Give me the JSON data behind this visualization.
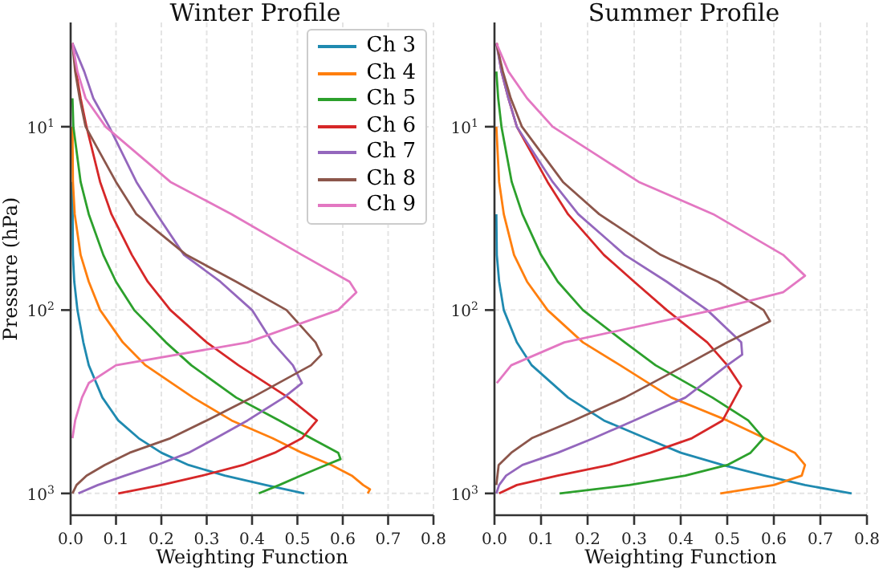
{
  "chart_data": [
    {
      "type": "line",
      "title": "Winter Profile",
      "xlabel": "Weighting Function",
      "ylabel": "Pressure (hPa)",
      "xlim": [
        0,
        0.8
      ],
      "xticks": [
        {
          "value": 0,
          "label": "0.0"
        },
        0.1,
        0.2,
        0.3,
        0.4,
        0.5,
        0.6,
        0.7,
        0.8
      ],
      "ylim": [
        1315,
        2.7
      ],
      "yticks": [
        {
          "value": 10,
          "label": "10$^{1}$"
        },
        {
          "value": 100,
          "label": "10$^{2}$"
        },
        {
          "value": 1000,
          "label": "10$^{3}$"
        }
      ],
      "log": "y",
      "grid": true,
      "legend": "top right",
      "series": [
        {
          "name": "Ch 3",
          "color": "#1f8ab0",
          "x": [
            0.004,
            0.005,
            0.008,
            0.015,
            0.028,
            0.04,
            0.07,
            0.105,
            0.15,
            0.2,
            0.26,
            0.34,
            0.43,
            0.515
          ],
          "values": [
            20,
            50,
            70,
            100,
            150,
            200,
            300,
            400,
            500,
            600,
            700,
            800,
            900,
            1000
          ]
        },
        {
          "name": "Ch 4",
          "color": "#ff7f0e",
          "x": [
            0.004,
            0.005,
            0.009,
            0.022,
            0.04,
            0.065,
            0.115,
            0.165,
            0.27,
            0.355,
            0.445,
            0.51,
            0.575,
            0.62,
            0.645,
            0.66,
            0.655
          ],
          "values": [
            10,
            20,
            30,
            50,
            70,
            100,
            150,
            200,
            300,
            400,
            500,
            600,
            700,
            800,
            900,
            950,
            1000
          ]
        },
        {
          "name": "Ch 5",
          "color": "#2ca02c",
          "x": [
            0.004,
            0.006,
            0.022,
            0.04,
            0.072,
            0.1,
            0.14,
            0.21,
            0.266,
            0.365,
            0.46,
            0.53,
            0.59,
            0.595,
            0.563,
            0.507,
            0.46,
            0.415
          ],
          "values": [
            7,
            10,
            20,
            30,
            50,
            70,
            100,
            150,
            200,
            300,
            400,
            500,
            600,
            650,
            700,
            800,
            900,
            1000
          ]
        },
        {
          "name": "Ch 6",
          "color": "#d62728",
          "x": [
            0.004,
            0.012,
            0.022,
            0.035,
            0.065,
            0.09,
            0.135,
            0.17,
            0.22,
            0.3,
            0.37,
            0.48,
            0.543,
            0.51,
            0.45,
            0.38,
            0.29,
            0.2,
            0.105
          ],
          "values": [
            3.5,
            5,
            7,
            10,
            20,
            30,
            50,
            70,
            100,
            150,
            200,
            300,
            400,
            500,
            600,
            700,
            800,
            900,
            1000
          ]
        },
        {
          "name": "Ch 7",
          "color": "#9467bd",
          "x": [
            0.004,
            0.03,
            0.05,
            0.085,
            0.145,
            0.19,
            0.25,
            0.33,
            0.4,
            0.445,
            0.49,
            0.51,
            0.47,
            0.39,
            0.32,
            0.26,
            0.19,
            0.12,
            0.06,
            0.017
          ],
          "values": [
            3.5,
            5,
            7,
            10,
            20,
            30,
            50,
            70,
            100,
            150,
            200,
            250,
            300,
            400,
            500,
            600,
            700,
            800,
            900,
            1000
          ]
        },
        {
          "name": "Ch 8",
          "color": "#8c564b",
          "x": [
            0.004,
            0.01,
            0.02,
            0.033,
            0.1,
            0.145,
            0.255,
            0.365,
            0.476,
            0.54,
            0.553,
            0.53,
            0.4,
            0.3,
            0.22,
            0.13,
            0.075,
            0.035,
            0.013,
            0.004
          ],
          "values": [
            3.5,
            5,
            7,
            10,
            20,
            30,
            50,
            70,
            100,
            150,
            175,
            200,
            300,
            400,
            500,
            600,
            700,
            800,
            900,
            1000
          ]
        },
        {
          "name": "Ch 9",
          "color": "#e377c2",
          "x": [
            0.004,
            0.015,
            0.033,
            0.077,
            0.22,
            0.355,
            0.51,
            0.615,
            0.63,
            0.59,
            0.39,
            0.1,
            0.04,
            0.025,
            0.01,
            0.004
          ],
          "values": [
            3.5,
            5,
            7,
            10,
            20,
            30,
            50,
            70,
            80,
            100,
            150,
            200,
            250,
            300,
            400,
            500
          ]
        }
      ]
    },
    {
      "type": "line",
      "title": "Summer Profile",
      "xlabel": "Weighting Function",
      "xlim": [
        0,
        0.8
      ],
      "xticks": [
        {
          "value": 0,
          "label": "0.0"
        },
        0.1,
        0.2,
        0.3,
        0.4,
        0.5,
        0.6,
        0.7,
        0.8
      ],
      "ylim": [
        1315,
        2.7
      ],
      "yticks": [
        {
          "value": 10,
          "label": "10$^{1}$"
        },
        {
          "value": 100,
          "label": "10$^{2}$"
        },
        {
          "value": 1000,
          "label": "10$^{3}$"
        }
      ],
      "log": "y",
      "grid": true,
      "series": [
        {
          "color": "#1f8ab0",
          "x": [
            0.004,
            0.005,
            0.01,
            0.02,
            0.048,
            0.08,
            0.158,
            0.235,
            0.325,
            0.4,
            0.49,
            0.58,
            0.667,
            0.767
          ],
          "values": [
            30,
            50,
            70,
            100,
            150,
            200,
            300,
            400,
            500,
            600,
            700,
            800,
            900,
            1000
          ]
        },
        {
          "color": "#ff7f0e",
          "x": [
            0.004,
            0.01,
            0.02,
            0.042,
            0.07,
            0.114,
            0.19,
            0.27,
            0.38,
            0.5,
            0.58,
            0.645,
            0.667,
            0.66,
            0.6,
            0.485
          ],
          "values": [
            10,
            20,
            30,
            50,
            70,
            100,
            150,
            200,
            300,
            400,
            500,
            600,
            700,
            800,
            900,
            1000
          ]
        },
        {
          "color": "#2ca02c",
          "x": [
            0.004,
            0.008,
            0.015,
            0.037,
            0.06,
            0.1,
            0.136,
            0.19,
            0.28,
            0.346,
            0.468,
            0.545,
            0.578,
            0.55,
            0.5,
            0.41,
            0.29,
            0.14
          ],
          "values": [
            5,
            7,
            10,
            20,
            30,
            50,
            70,
            100,
            150,
            200,
            300,
            400,
            500,
            600,
            700,
            800,
            900,
            1000
          ]
        },
        {
          "color": "#d62728",
          "x": [
            0.005,
            0.015,
            0.03,
            0.048,
            0.114,
            0.158,
            0.235,
            0.3,
            0.37,
            0.457,
            0.5,
            0.53,
            0.49,
            0.424,
            0.335,
            0.247,
            0.136,
            0.048,
            0.01
          ],
          "values": [
            3.5,
            5,
            7,
            10,
            20,
            30,
            50,
            70,
            100,
            150,
            200,
            260,
            400,
            500,
            600,
            700,
            800,
            900,
            1000
          ]
        },
        {
          "color": "#9467bd",
          "x": [
            0.004,
            0.015,
            0.03,
            0.048,
            0.125,
            0.18,
            0.28,
            0.37,
            0.457,
            0.53,
            0.532,
            0.5,
            0.41,
            0.3,
            0.213,
            0.136,
            0.06,
            0.025,
            0.01,
            0.004
          ],
          "values": [
            3.5,
            5,
            7,
            10,
            20,
            30,
            50,
            70,
            100,
            150,
            175,
            200,
            300,
            400,
            500,
            600,
            700,
            800,
            900,
            1000
          ]
        },
        {
          "color": "#8c564b",
          "x": [
            0.004,
            0.018,
            0.035,
            0.059,
            0.147,
            0.225,
            0.357,
            0.48,
            0.578,
            0.592,
            0.5,
            0.41,
            0.28,
            0.17,
            0.08,
            0.036,
            0.009,
            0.004
          ],
          "values": [
            3.5,
            5,
            7,
            10,
            20,
            30,
            50,
            70,
            100,
            115,
            150,
            200,
            300,
            400,
            500,
            600,
            700,
            900
          ]
        },
        {
          "color": "#e377c2",
          "x": [
            0.004,
            0.03,
            0.07,
            0.125,
            0.31,
            0.47,
            0.62,
            0.667,
            0.62,
            0.47,
            0.15,
            0.036,
            0.005
          ],
          "values": [
            3.5,
            5,
            7,
            10,
            20,
            30,
            50,
            65,
            80,
            100,
            150,
            200,
            250
          ]
        }
      ]
    }
  ]
}
